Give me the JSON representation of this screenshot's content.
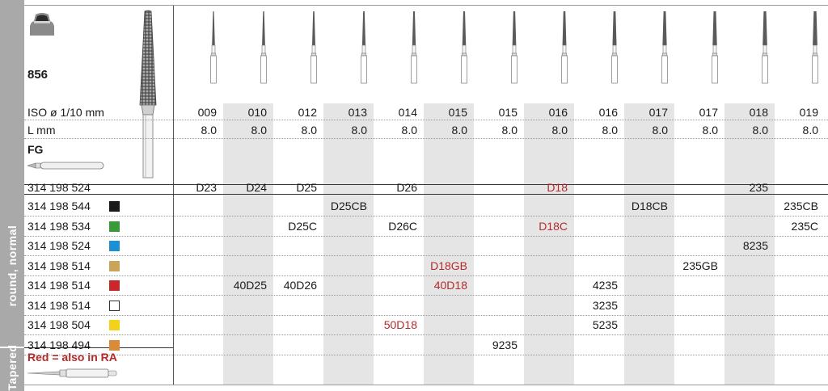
{
  "sidebar": {
    "label_normal": "round, normal",
    "label_tapered": "Tapered"
  },
  "product": {
    "number": "856",
    "connection": "FG",
    "footnote": "Red = also in RA"
  },
  "spec_rows": [
    {
      "label": "ISO ø 1/10 mm",
      "values": [
        "009",
        "010",
        "012",
        "013",
        "014",
        "015",
        "015",
        "016",
        "016",
        "017",
        "017",
        "018",
        "019"
      ]
    },
    {
      "label": "L mm",
      "values": [
        "8.0",
        "8.0",
        "8.0",
        "8.0",
        "8.0",
        "8.0",
        "8.0",
        "8.0",
        "8.0",
        "8.0",
        "8.0",
        "8.0",
        "8.0"
      ]
    }
  ],
  "order_rows": [
    {
      "ref": "314 198 524",
      "swatch": "",
      "cells": [
        "D23",
        "D24",
        "D25",
        "",
        "D26",
        "",
        "",
        "D18",
        "",
        "",
        "",
        "235",
        ""
      ],
      "red": [
        false,
        false,
        false,
        false,
        false,
        false,
        false,
        true,
        false,
        false,
        false,
        false,
        false
      ]
    },
    {
      "ref": "314 198 544",
      "swatch": "#1a1a1a",
      "cells": [
        "",
        "",
        "",
        "D25CB",
        "",
        "",
        "",
        "",
        "",
        "D18CB",
        "",
        "",
        "235CB"
      ],
      "red": [
        false,
        false,
        false,
        false,
        false,
        false,
        false,
        false,
        false,
        false,
        false,
        false,
        false
      ]
    },
    {
      "ref": "314 198 534",
      "swatch": "#3a9a3a",
      "cells": [
        "",
        "",
        "D25C",
        "",
        "D26C",
        "",
        "",
        "D18C",
        "",
        "",
        "",
        "",
        "235C"
      ],
      "red": [
        false,
        false,
        false,
        false,
        false,
        false,
        false,
        true,
        false,
        false,
        false,
        false,
        false
      ]
    },
    {
      "ref": "314 198 524",
      "swatch": "#1e8fd0",
      "cells": [
        "",
        "",
        "",
        "",
        "",
        "",
        "",
        "",
        "",
        "",
        "",
        "8235",
        ""
      ],
      "red": [
        false,
        false,
        false,
        false,
        false,
        false,
        false,
        false,
        false,
        false,
        false,
        false,
        false
      ]
    },
    {
      "ref": "314 198 514",
      "swatch": "#c9a55a",
      "cells": [
        "",
        "",
        "",
        "",
        "",
        "D18GB",
        "",
        "",
        "",
        "",
        "235GB",
        "",
        ""
      ],
      "red": [
        false,
        false,
        false,
        false,
        false,
        true,
        false,
        false,
        false,
        false,
        false,
        false,
        false
      ]
    },
    {
      "ref": "314 198 514",
      "swatch": "#c8282a",
      "cells": [
        "",
        "40D25",
        "40D26",
        "",
        "",
        "40D18",
        "",
        "",
        "4235",
        "",
        "",
        "",
        ""
      ],
      "red": [
        false,
        false,
        false,
        false,
        false,
        true,
        false,
        false,
        false,
        false,
        false,
        false,
        false
      ]
    },
    {
      "ref": "314 198 514",
      "swatch": "#ffffff",
      "cells": [
        "",
        "",
        "",
        "",
        "",
        "",
        "",
        "",
        "3235",
        "",
        "",
        "",
        ""
      ],
      "red": [
        false,
        false,
        false,
        false,
        false,
        false,
        false,
        false,
        false,
        false,
        false,
        false,
        false
      ]
    },
    {
      "ref": "314 198 504",
      "swatch": "#f2d21a",
      "cells": [
        "",
        "",
        "",
        "",
        "50D18",
        "",
        "",
        "",
        "5235",
        "",
        "",
        "",
        ""
      ],
      "red": [
        false,
        false,
        false,
        false,
        true,
        false,
        false,
        false,
        false,
        false,
        false,
        false,
        false
      ]
    },
    {
      "ref": "314 198 494",
      "swatch": "#d98b3a",
      "cells": [
        "",
        "",
        "",
        "",
        "",
        "",
        "9235",
        "",
        "",
        "",
        "",
        "",
        ""
      ],
      "red": [
        false,
        false,
        false,
        false,
        false,
        false,
        false,
        false,
        false,
        false,
        false,
        false,
        false
      ]
    }
  ],
  "colors": {
    "sidebar": "#a9a9a9",
    "column_shade": "#e5e5e5",
    "red_text": "#b52a2a",
    "bur_head": "#5a5a5a"
  },
  "icons": {
    "tooth": "tooth-preparation-icon",
    "fg_shank": "fg-shank-icon",
    "ra_shank": "ra-shank-icon",
    "bur": "tapered-bur-icon"
  }
}
